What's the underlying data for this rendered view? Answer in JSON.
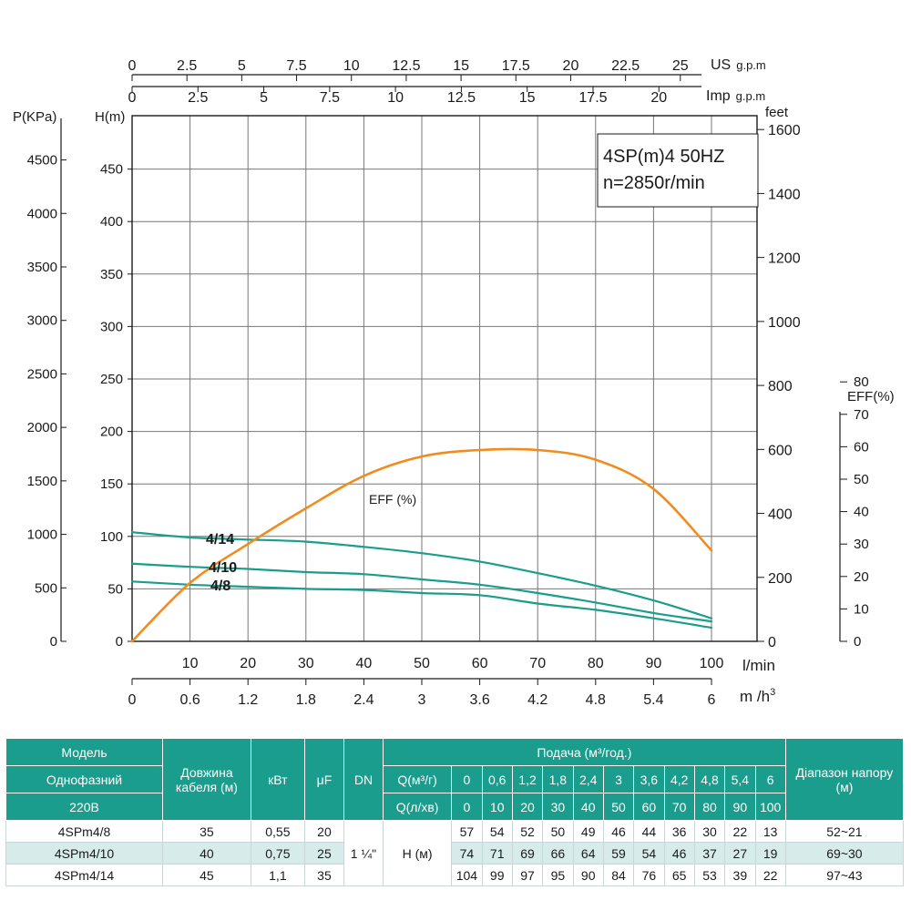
{
  "chart_data": {
    "type": "line",
    "title_lines": [
      "4SP(m)4  50HZ",
      "n=2850r/min"
    ],
    "axes": {
      "us_gpm": {
        "label_main": "US",
        "label_unit": "g.p.m",
        "ticks": [
          "0",
          "2.5",
          "5",
          "7.5",
          "10",
          "12.5",
          "15",
          "17.5",
          "20",
          "22.5",
          "25"
        ],
        "values": [
          0,
          2.5,
          5,
          7.5,
          10,
          12.5,
          15,
          17.5,
          20,
          22.5,
          25
        ]
      },
      "imp_gpm": {
        "label_main": "Imp",
        "label_unit": "g.p.m",
        "ticks": [
          "0",
          "2.5",
          "5",
          "7.5",
          "10",
          "12.5",
          "15",
          "17.5",
          "20"
        ],
        "values": [
          0,
          2.5,
          5,
          7.5,
          10,
          12.5,
          15,
          17.5,
          20
        ]
      },
      "h_m": {
        "label": "H(m)",
        "ticks": [
          "0",
          "50",
          "100",
          "150",
          "200",
          "250",
          "300",
          "350",
          "400",
          "450"
        ],
        "range": [
          0,
          500
        ]
      },
      "p_kpa": {
        "label": "P(KPa)",
        "ticks": [
          "0",
          "500",
          "1000",
          "1500",
          "2000",
          "2500",
          "3000",
          "3500",
          "4000",
          "4500"
        ]
      },
      "feet": {
        "label": "feet",
        "ticks": [
          "0",
          "200",
          "400",
          "600",
          "800",
          "1000",
          "1200",
          "1400",
          "1600"
        ]
      },
      "eff": {
        "label": "EFF(%)",
        "ticks": [
          "0",
          "10",
          "20",
          "30",
          "40",
          "50",
          "60",
          "70",
          "80"
        ],
        "range": [
          0,
          80
        ]
      },
      "lmin": {
        "label": "l/min",
        "ticks": [
          "10",
          "20",
          "30",
          "40",
          "50",
          "60",
          "70",
          "80",
          "90",
          "100"
        ],
        "range": [
          0,
          100
        ]
      },
      "m3h": {
        "label": "m /h",
        "sup": "3",
        "ticks": [
          "0",
          "0.6",
          "1.2",
          "1.8",
          "2.4",
          "3",
          "3.6",
          "4.2",
          "4.8",
          "5.4",
          "6"
        ]
      }
    },
    "x": [
      0,
      10,
      20,
      30,
      40,
      50,
      60,
      70,
      80,
      90,
      100
    ],
    "series": [
      {
        "name": "4/14",
        "axis": "h_m",
        "color": "#1a9d8d",
        "values": [
          104,
          99,
          97,
          95,
          90,
          84,
          76,
          65,
          53,
          39,
          22
        ]
      },
      {
        "name": "4/10",
        "axis": "h_m",
        "color": "#1a9d8d",
        "values": [
          74,
          71,
          69,
          66,
          64,
          59,
          54,
          46,
          37,
          27,
          19
        ]
      },
      {
        "name": "4/8",
        "axis": "h_m",
        "color": "#1a9d8d",
        "values": [
          57,
          54,
          52,
          50,
          49,
          46,
          44,
          36,
          30,
          22,
          13
        ]
      },
      {
        "name": "EFF (%)",
        "axis": "eff",
        "color": "#f28b1e",
        "values": [
          0,
          18,
          30,
          41,
          51,
          57,
          59,
          59,
          56,
          47,
          28
        ]
      }
    ],
    "grid": true
  },
  "colors": {
    "teal": "#1a9d8d",
    "orange": "#f28b1e",
    "row_alt": "#d7ecea"
  },
  "table": {
    "h_model": "Модель",
    "h_single": "Однофазний",
    "h_volt": "220В",
    "h_cable": "Довжина кабеля (м)",
    "h_kw": "кВт",
    "h_uf": "μF",
    "h_dn": "DN",
    "h_flow": "Подача (м³/год.)",
    "h_q1": "Q(м³/г)",
    "h_q2": "Q(л/хв)",
    "h_range": "Діапазон напору (м)",
    "q_m3h": [
      "0",
      "0,6",
      "1,2",
      "1,8",
      "2,4",
      "3",
      "3,6",
      "4,2",
      "4,8",
      "5,4",
      "6"
    ],
    "q_lmin": [
      "0",
      "10",
      "20",
      "30",
      "40",
      "50",
      "60",
      "70",
      "80",
      "90",
      "100"
    ],
    "dn_value": "1 ¼\"",
    "h_unit": "Н (м)",
    "rows": [
      {
        "model": "4SPm4/8",
        "cable": "35",
        "kw": "0,55",
        "uf": "20",
        "heads": [
          "57",
          "54",
          "52",
          "50",
          "49",
          "46",
          "44",
          "36",
          "30",
          "22",
          "13"
        ],
        "range": "52~21"
      },
      {
        "model": "4SPm4/10",
        "cable": "40",
        "kw": "0,75",
        "uf": "25",
        "heads": [
          "74",
          "71",
          "69",
          "66",
          "64",
          "59",
          "54",
          "46",
          "37",
          "27",
          "19"
        ],
        "range": "69~30"
      },
      {
        "model": "4SPm4/14",
        "cable": "45",
        "kw": "1,1",
        "uf": "35",
        "heads": [
          "104",
          "99",
          "97",
          "95",
          "90",
          "84",
          "76",
          "65",
          "53",
          "39",
          "22"
        ],
        "range": "97~43"
      }
    ]
  }
}
